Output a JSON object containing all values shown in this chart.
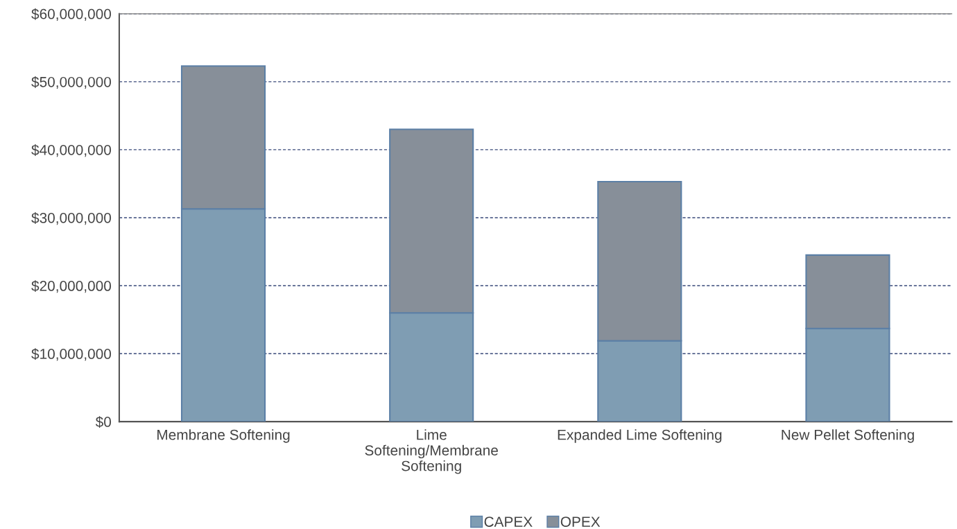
{
  "chart_data": {
    "type": "bar",
    "stacked": true,
    "categories": [
      "Membrane Softening",
      "Lime\nSoftening/Membrane\nSoftening",
      "Expanded Lime Softening",
      "New Pellet Softening"
    ],
    "series": [
      {
        "name": "CAPEX",
        "color": "#7f9db3",
        "values": [
          31300000,
          16000000,
          11900000,
          13700000
        ]
      },
      {
        "name": "OPEX",
        "color": "#878f99",
        "values": [
          21000000,
          27000000,
          23400000,
          10800000
        ]
      }
    ],
    "ylim": [
      0,
      60000000
    ],
    "yticks": [
      {
        "value": 0,
        "label": "$0"
      },
      {
        "value": 10000000,
        "label": "$10,000,000"
      },
      {
        "value": 20000000,
        "label": "$20,000,000"
      },
      {
        "value": 30000000,
        "label": "$30,000,000"
      },
      {
        "value": 40000000,
        "label": "$40,000,000"
      },
      {
        "value": 50000000,
        "label": "$50,000,000"
      },
      {
        "value": 60000000,
        "label": "$60,000,000"
      }
    ],
    "grid": "y",
    "legend": "bottom"
  }
}
